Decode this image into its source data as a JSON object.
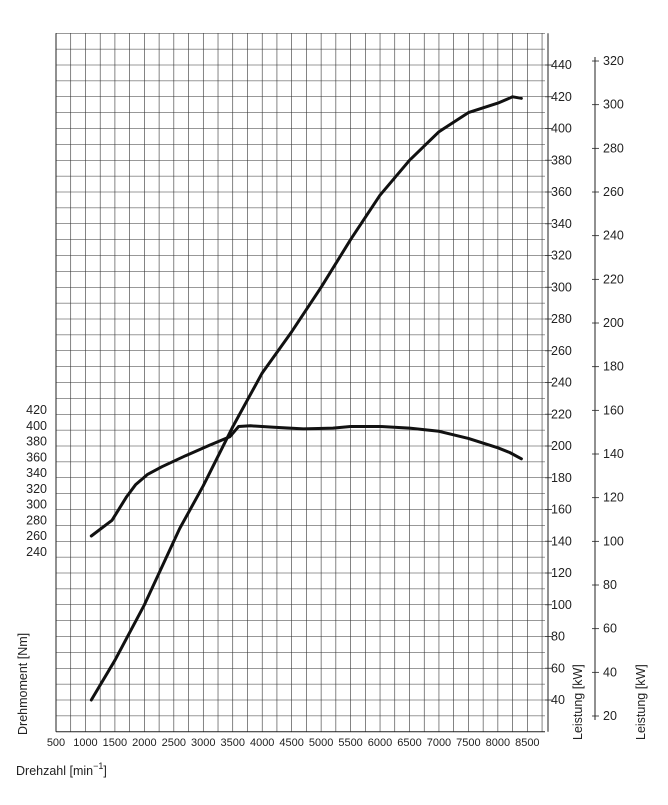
{
  "chart_data": {
    "type": "line",
    "x_axis": {
      "label": "Drehzahl [min",
      "label_sup": "−1",
      "label_close": "]",
      "range": [
        500,
        8800
      ],
      "ticks": [
        500,
        1000,
        1500,
        2000,
        2500,
        3000,
        3500,
        4000,
        4500,
        5000,
        5500,
        6000,
        6500,
        7000,
        7500,
        8000,
        8500
      ],
      "grid_step": 250
    },
    "y_axis_torque": {
      "label": "Drehmoment [Nm]",
      "range": [
        240,
        420
      ],
      "ticks": [
        240,
        260,
        280,
        300,
        320,
        340,
        360,
        380,
        400,
        420
      ]
    },
    "y_axis_power_hp": {
      "label": "Leistung [kW]",
      "range": [
        40,
        440
      ],
      "ticks": [
        40,
        60,
        80,
        100,
        120,
        140,
        160,
        180,
        200,
        220,
        240,
        260,
        280,
        300,
        320,
        340,
        360,
        380,
        400,
        420,
        440
      ],
      "grid_range": [
        20,
        460
      ]
    },
    "y_axis_power_kw": {
      "label": "Leistung [kW]",
      "range": [
        20,
        320
      ],
      "ticks": [
        20,
        40,
        60,
        80,
        100,
        120,
        140,
        160,
        180,
        200,
        220,
        240,
        260,
        280,
        300,
        320
      ]
    },
    "grid": true,
    "series": [
      {
        "axis": "torque",
        "points": [
          [
            1100,
            260
          ],
          [
            1450,
            280
          ],
          [
            1700,
            310
          ],
          [
            1850,
            325
          ],
          [
            2050,
            338
          ],
          [
            2300,
            348
          ],
          [
            2700,
            362
          ],
          [
            3100,
            375
          ],
          [
            3450,
            386
          ],
          [
            3600,
            399
          ],
          [
            3800,
            400
          ],
          [
            4200,
            398
          ],
          [
            4700,
            396
          ],
          [
            5200,
            397
          ],
          [
            5500,
            399
          ],
          [
            6000,
            399
          ],
          [
            6500,
            397
          ],
          [
            7000,
            393
          ],
          [
            7500,
            384
          ],
          [
            8000,
            372
          ],
          [
            8200,
            366
          ],
          [
            8400,
            358
          ]
        ]
      },
      {
        "axis": "power_hp",
        "points": [
          [
            1100,
            40
          ],
          [
            1500,
            65
          ],
          [
            2000,
            100
          ],
          [
            2600,
            148
          ],
          [
            3000,
            175
          ],
          [
            3500,
            212
          ],
          [
            4000,
            246
          ],
          [
            4500,
            272
          ],
          [
            5000,
            300
          ],
          [
            5500,
            330
          ],
          [
            6000,
            358
          ],
          [
            6500,
            380
          ],
          [
            7000,
            398
          ],
          [
            7500,
            410
          ],
          [
            8000,
            416
          ],
          [
            8250,
            420
          ],
          [
            8400,
            419
          ]
        ]
      }
    ]
  }
}
